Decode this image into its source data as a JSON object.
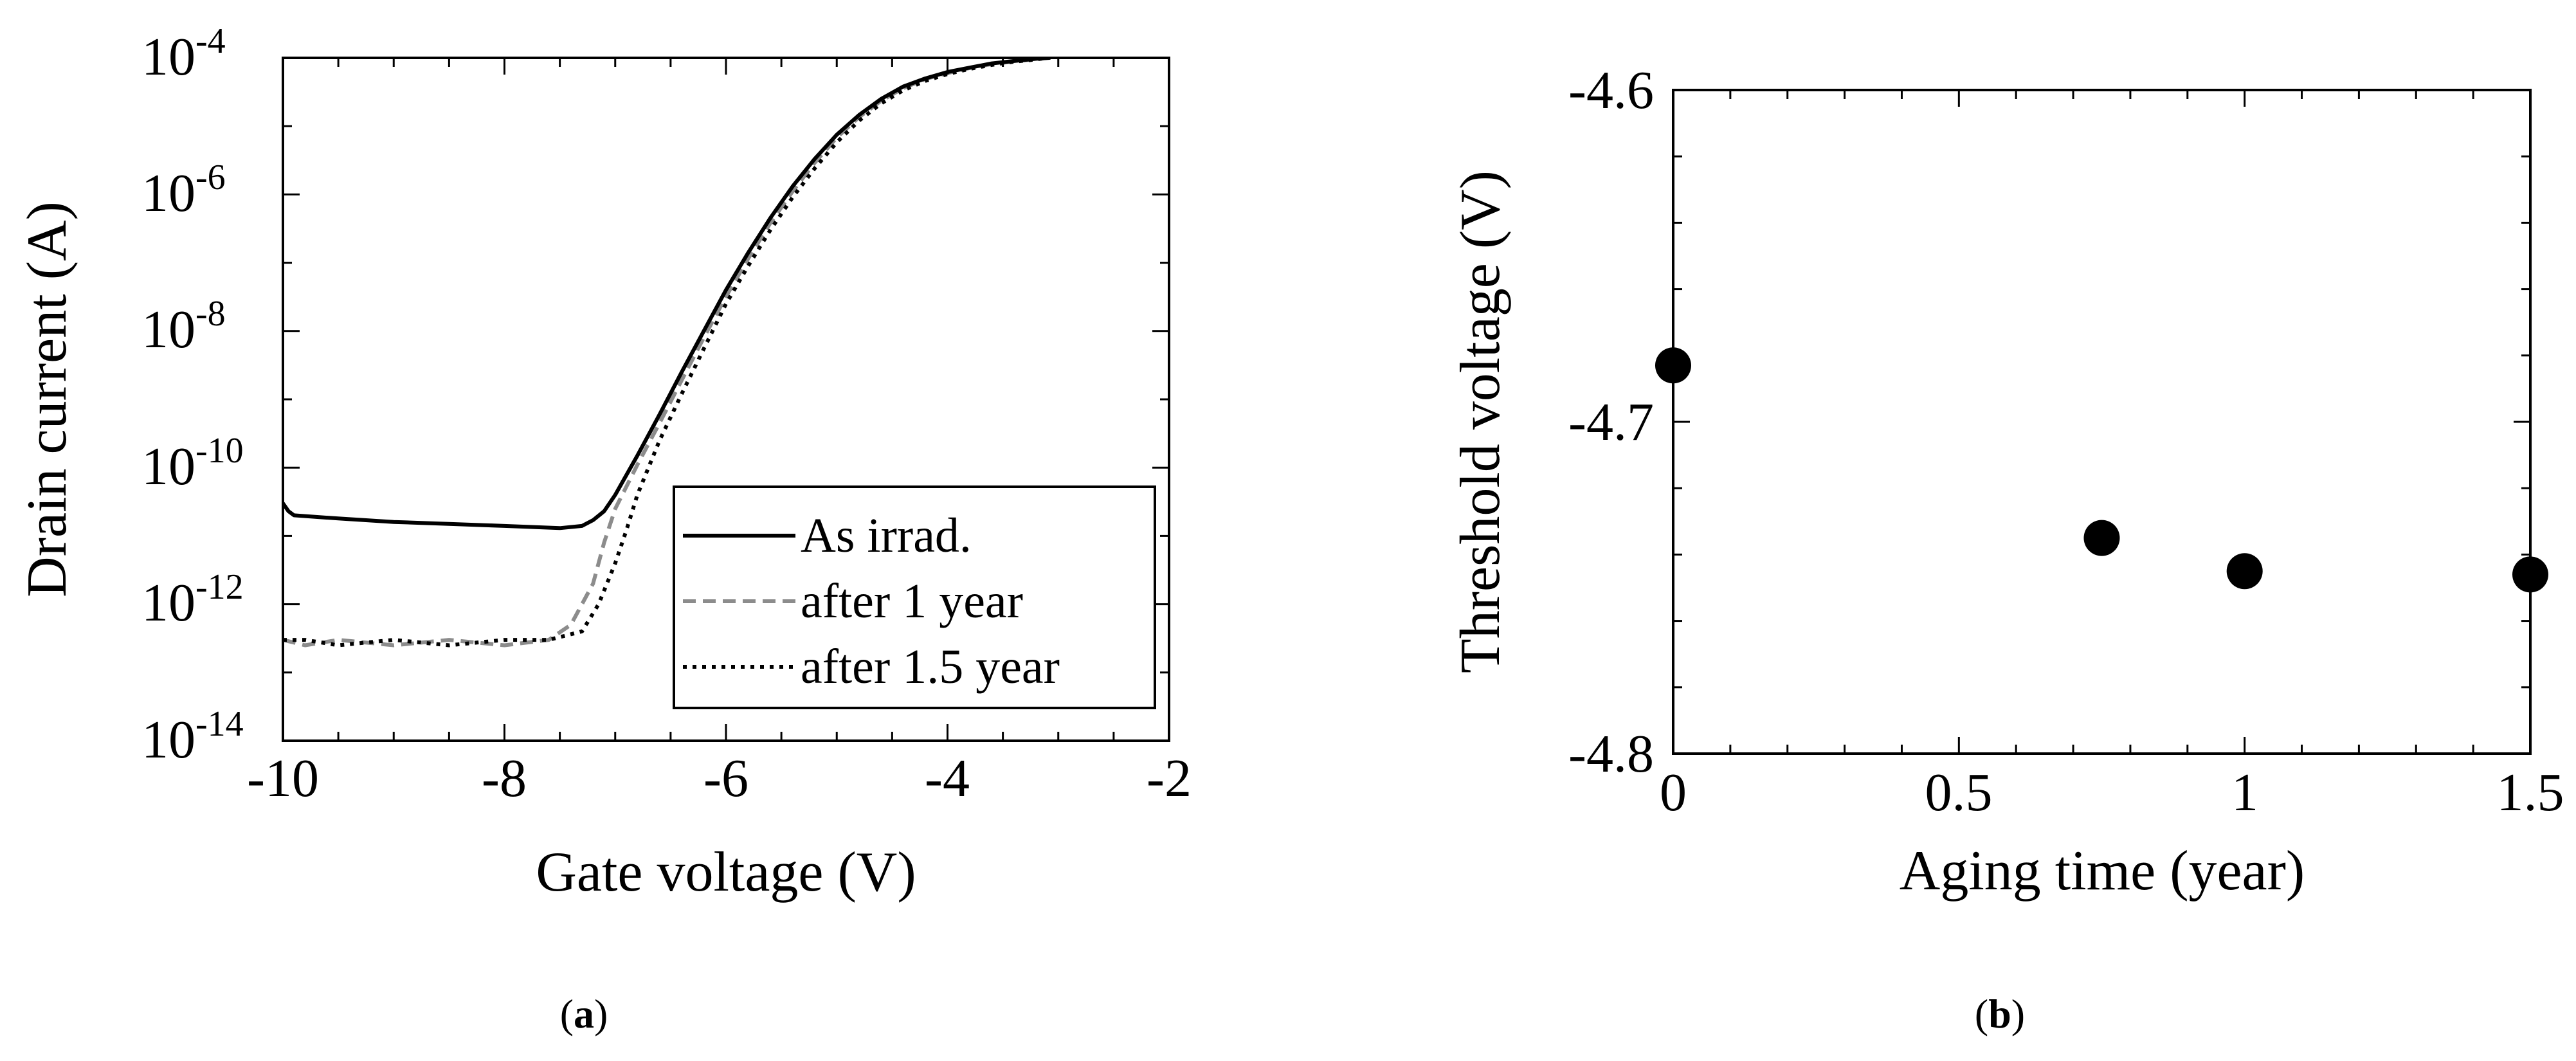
{
  "panels": [
    {
      "prefix": "(",
      "letter": "a",
      "suffix": ")"
    },
    {
      "prefix": "(",
      "letter": "b",
      "suffix": ")"
    }
  ],
  "chart_data": [
    {
      "type": "line",
      "xlabel": "Gate voltage (V)",
      "ylabel": "Drain current (A)",
      "xlim": [
        -10,
        -2
      ],
      "ylim": [
        1e-14,
        0.0001
      ],
      "yscale": "log",
      "x_ticks": [
        "-10",
        "-8",
        "-6",
        "-4",
        "-2"
      ],
      "y_ticks": [
        {
          "base": "10",
          "exp": "-14"
        },
        {
          "base": "10",
          "exp": "-12"
        },
        {
          "base": "10",
          "exp": "-10"
        },
        {
          "base": "10",
          "exp": "-8"
        },
        {
          "base": "10",
          "exp": "-6"
        },
        {
          "base": "10",
          "exp": "-4"
        }
      ],
      "grid": false,
      "legend_position": "bottom-right",
      "series": [
        {
          "name": "As irrad.",
          "style": "solid",
          "color": "#000000",
          "x": [
            -10,
            -9.95,
            -9.9,
            -9.5,
            -9.0,
            -8.5,
            -8.0,
            -7.5,
            -7.3,
            -7.2,
            -7.1,
            -7.0,
            -6.8,
            -6.6,
            -6.4,
            -6.2,
            -6.0,
            -5.8,
            -5.6,
            -5.4,
            -5.2,
            -5.0,
            -4.8,
            -4.6,
            -4.4,
            -4.2,
            -4.0,
            -3.8,
            -3.6,
            -3.4,
            -3.2,
            -3.08
          ],
          "y": [
            3e-11,
            2.3e-11,
            2e-11,
            1.8e-11,
            1.6e-11,
            1.5e-11,
            1.4e-11,
            1.3e-11,
            1.4e-11,
            1.7e-11,
            2.3e-11,
            4e-11,
            1.5e-10,
            6e-10,
            2.5e-09,
            1e-08,
            4e-08,
            1.4e-07,
            4.5e-07,
            1.3e-06,
            3.3e-06,
            7.5e-06,
            1.45e-05,
            2.5e-05,
            3.8e-05,
            5e-05,
            6.2e-05,
            7.2e-05,
            8.3e-05,
            9e-05,
            9.7e-05,
            0.0001
          ]
        },
        {
          "name": "after 1 year",
          "style": "dashed",
          "color": "#8c8c8c",
          "x": [
            -10,
            -9.8,
            -9.5,
            -9.0,
            -8.5,
            -8.0,
            -7.6,
            -7.4,
            -7.2,
            -7.1,
            -7.0,
            -6.8,
            -6.6,
            -6.4,
            -6.2,
            -6.0,
            -5.8,
            -5.6,
            -5.4,
            -5.2,
            -5.0,
            -4.8,
            -4.6,
            -4.4,
            -4.2,
            -4.0,
            -3.8,
            -3.6,
            -3.4,
            -3.2,
            -3.1
          ],
          "y": [
            3e-13,
            2.5e-13,
            3e-13,
            2.5e-13,
            3e-13,
            2.5e-13,
            3e-13,
            5e-13,
            2e-12,
            8e-12,
            2.5e-11,
            1.1e-10,
            4.5e-10,
            1.9e-09,
            8e-09,
            3.2e-08,
            1.15e-07,
            3.8e-07,
            1.1e-06,
            2.9e-06,
            6.8e-06,
            1.35e-05,
            2.35e-05,
            3.6e-05,
            4.9e-05,
            6e-05,
            7.1e-05,
            8.1e-05,
            8.9e-05,
            9.6e-05,
            0.0001
          ]
        },
        {
          "name": "after 1.5 year",
          "style": "dotted",
          "color": "#000000",
          "x": [
            -10,
            -9.8,
            -9.5,
            -9.0,
            -8.5,
            -8.0,
            -7.6,
            -7.3,
            -7.15,
            -7.0,
            -6.9,
            -6.8,
            -6.6,
            -6.4,
            -6.2,
            -6.0,
            -5.8,
            -5.6,
            -5.4,
            -5.2,
            -5.0,
            -4.8,
            -4.6,
            -4.4,
            -4.2,
            -4.0,
            -3.8,
            -3.6,
            -3.4,
            -3.2,
            -3.1
          ],
          "y": [
            3e-13,
            3e-13,
            2.5e-13,
            3e-13,
            2.5e-13,
            3e-13,
            3e-13,
            4e-13,
            1e-12,
            4e-12,
            1.2e-11,
            4e-11,
            2.5e-10,
            1.2e-09,
            5.5e-09,
            2.5e-08,
            9e-08,
            3e-07,
            9e-07,
            2.4e-06,
            5.8e-06,
            1.2e-05,
            2.15e-05,
            3.35e-05,
            4.6e-05,
            5.8e-05,
            6.9e-05,
            7.9e-05,
            8.8e-05,
            9.5e-05,
            0.0001
          ]
        }
      ]
    },
    {
      "type": "scatter",
      "xlabel": "Aging time (year)",
      "ylabel": "Threshold voltage (V)",
      "xlim": [
        0,
        1.5
      ],
      "ylim": [
        -4.8,
        -4.6
      ],
      "x_ticks": [
        "0",
        "0.5",
        "1",
        "1.5"
      ],
      "y_ticks": [
        "-4.8",
        "-4.7",
        "-4.6"
      ],
      "grid": false,
      "series": [
        {
          "marker": "circle",
          "color": "#000000",
          "x": [
            0,
            0.75,
            1.0,
            1.5
          ],
          "y": [
            -4.683,
            -4.735,
            -4.745,
            -4.746
          ]
        }
      ]
    }
  ]
}
